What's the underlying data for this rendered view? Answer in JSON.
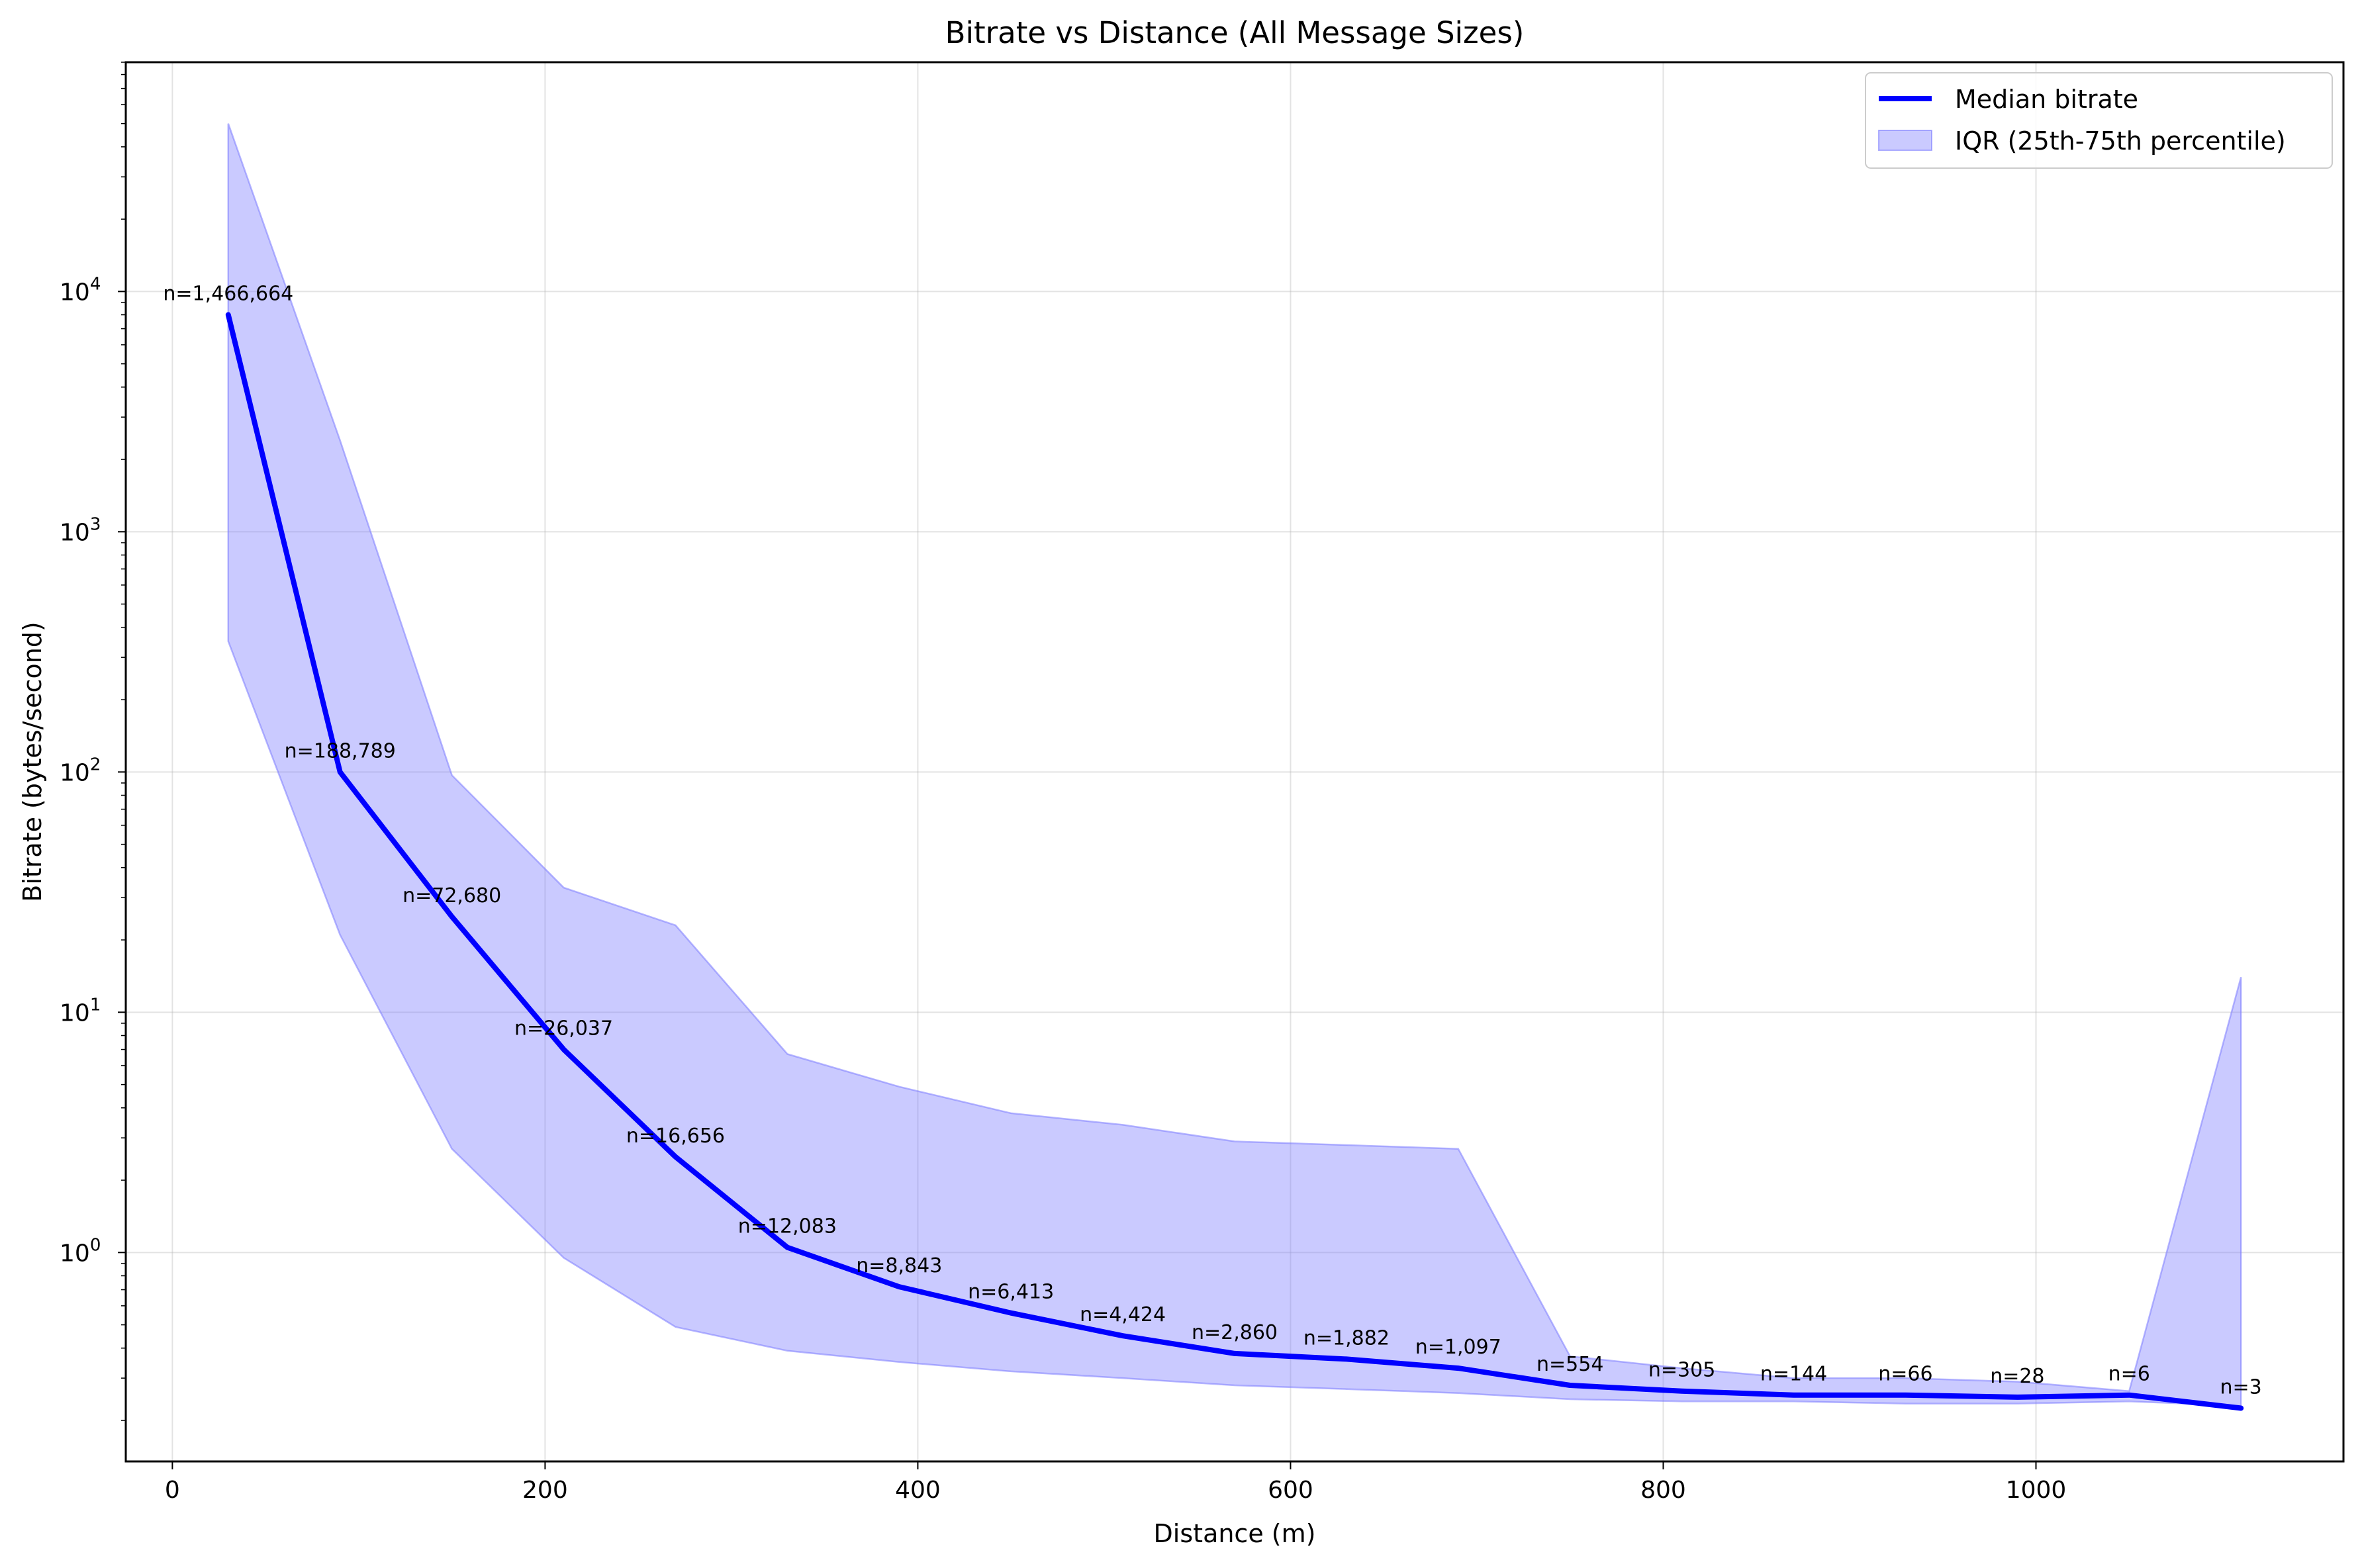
{
  "chart_data": {
    "type": "line",
    "title": "Bitrate vs Distance (All Message Sizes)",
    "xlabel": "Distance (m)",
    "ylabel": "Bitrate (bytes/second)",
    "xlim": [
      -25,
      1165
    ],
    "ylim": [
      0.135,
      90000
    ],
    "yscale": "log",
    "grid": true,
    "legend_position": "top-right",
    "x_ticks": [
      0,
      200,
      400,
      600,
      800,
      1000
    ],
    "y_ticks": [
      {
        "value": 1,
        "base": "10",
        "exp": "0"
      },
      {
        "value": 10,
        "base": "10",
        "exp": "1"
      },
      {
        "value": 100,
        "base": "10",
        "exp": "2"
      },
      {
        "value": 1000,
        "base": "10",
        "exp": "3"
      },
      {
        "value": 10000,
        "base": "10",
        "exp": "4"
      }
    ],
    "x": [
      30,
      90,
      150,
      210,
      270,
      330,
      390,
      450,
      510,
      570,
      630,
      690,
      750,
      810,
      870,
      930,
      990,
      1050,
      1110
    ],
    "series": [
      {
        "name": "Median bitrate",
        "color": "#0000ff",
        "values": [
          8000,
          100,
          25,
          7,
          2.5,
          1.05,
          0.72,
          0.56,
          0.45,
          0.38,
          0.36,
          0.33,
          0.28,
          0.265,
          0.255,
          0.255,
          0.25,
          0.255,
          0.225
        ]
      }
    ],
    "band": {
      "name": "IQR (25th-75th percentile)",
      "color": "#7b7bff",
      "fill_opacity": 0.4,
      "lower": [
        350,
        21,
        2.7,
        0.95,
        0.49,
        0.39,
        0.35,
        0.32,
        0.3,
        0.28,
        0.27,
        0.26,
        0.245,
        0.24,
        0.24,
        0.235,
        0.235,
        0.24,
        0.23
      ],
      "upper": [
        50000,
        2400,
        97,
        33,
        23,
        6.7,
        4.9,
        3.8,
        3.4,
        2.9,
        2.8,
        2.7,
        0.37,
        0.33,
        0.3,
        0.3,
        0.29,
        0.265,
        14
      ]
    },
    "annotations": [
      "n=1,466,664",
      "n=188,789",
      "n=72,680",
      "n=26,037",
      "n=16,656",
      "n=12,083",
      "n=8,843",
      "n=6,413",
      "n=4,424",
      "n=2,860",
      "n=1,882",
      "n=1,097",
      "n=554",
      "n=305",
      "n=144",
      "n=66",
      "n=28",
      "n=6",
      "n=3"
    ]
  }
}
